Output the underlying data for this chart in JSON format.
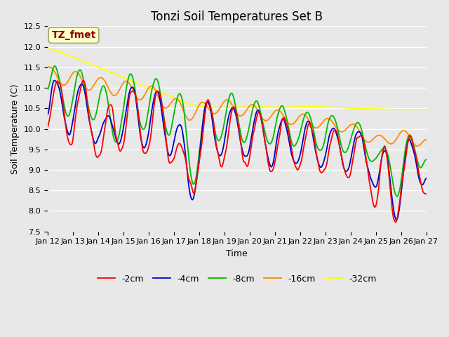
{
  "title": "Tonzi Soil Temperatures Set B",
  "xlabel": "Time",
  "ylabel": "Soil Temperature (C)",
  "ylim": [
    7.5,
    12.5
  ],
  "annotation": "TZ_fmet",
  "annotation_color": "#8B0000",
  "annotation_bg": "#FFFFCC",
  "bg_color": "#E8E8E8",
  "grid_color": "#FFFFFF",
  "series": [
    {
      "label": "-2cm",
      "color": "#FF0000"
    },
    {
      "label": "-4cm",
      "color": "#0000CC"
    },
    {
      "label": "-8cm",
      "color": "#00BB00"
    },
    {
      "label": "-16cm",
      "color": "#FF8C00"
    },
    {
      "label": "-32cm",
      "color": "#FFFF00"
    }
  ],
  "xtick_labels": [
    "Jan 12",
    "Jan 13",
    "Jan 14",
    "Jan 15",
    "Jan 16",
    "Jan 17",
    "Jan 18",
    "Jan 19",
    "Jan 20",
    "Jan 21",
    "Jan 22",
    "Jan 23",
    "Jan 24",
    "Jan 25",
    "Jan 26",
    "Jan 27"
  ],
  "title_fontsize": 12,
  "label_fontsize": 9,
  "tick_fontsize": 8
}
